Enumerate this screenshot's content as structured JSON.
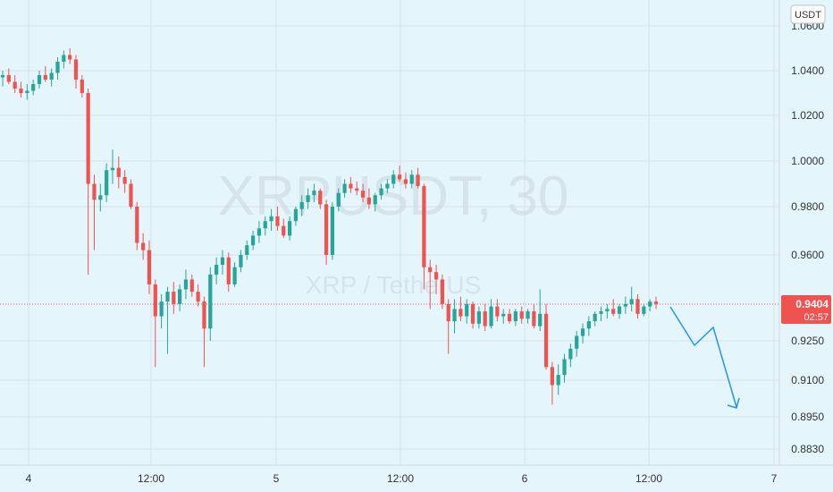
{
  "chart_data": {
    "type": "candlestick",
    "watermark": {
      "symbol": "XRPUSDT, 30",
      "name": "XRP / TetherUS"
    },
    "currency_label": "USDT",
    "y_ticks": [
      "1.0600",
      "1.0400",
      "1.0200",
      "1.0000",
      "0.9800",
      "0.9600",
      "0.9250",
      "0.9100",
      "0.8950",
      "0.8830"
    ],
    "x_ticks": [
      "4",
      "12:00",
      "5",
      "12:00",
      "6",
      "12:00",
      "7"
    ],
    "last_price": "0.9404",
    "countdown": "02:57",
    "grid": true,
    "colors": {
      "background": "#e4f5fb",
      "up": "#26a69a",
      "down": "#ef5350",
      "grid": "#d5e3e9",
      "forecast": "#2196f3"
    },
    "candles_ohlc": [
      [
        1.037,
        1.04,
        1.033,
        1.038
      ],
      [
        1.038,
        1.041,
        1.034,
        1.035
      ],
      [
        1.035,
        1.038,
        1.03,
        1.032
      ],
      [
        1.032,
        1.035,
        1.028,
        1.03
      ],
      [
        1.03,
        1.034,
        1.027,
        1.031
      ],
      [
        1.031,
        1.036,
        1.029,
        1.034
      ],
      [
        1.034,
        1.04,
        1.032,
        1.038
      ],
      [
        1.038,
        1.042,
        1.035,
        1.036
      ],
      [
        1.036,
        1.041,
        1.033,
        1.039
      ],
      [
        1.039,
        1.046,
        1.036,
        1.044
      ],
      [
        1.044,
        1.049,
        1.041,
        1.047
      ],
      [
        1.047,
        1.05,
        1.043,
        1.045
      ],
      [
        1.045,
        1.047,
        1.032,
        1.036
      ],
      [
        1.036,
        1.038,
        1.028,
        1.03
      ],
      [
        1.03,
        1.032,
        0.952,
        0.99
      ],
      [
        0.99,
        0.994,
        0.962,
        0.983
      ],
      [
        0.983,
        0.99,
        0.978,
        0.985
      ],
      [
        0.985,
        0.999,
        0.982,
        0.996
      ],
      [
        0.996,
        1.005,
        0.99,
        0.997
      ],
      [
        0.997,
        1.002,
        0.988,
        0.993
      ],
      [
        0.993,
        0.996,
        0.986,
        0.99
      ],
      [
        0.99,
        0.992,
        0.979,
        0.98
      ],
      [
        0.98,
        0.982,
        0.962,
        0.965
      ],
      [
        0.965,
        0.969,
        0.958,
        0.962
      ],
      [
        0.962,
        0.966,
        0.944,
        0.948
      ],
      [
        0.948,
        0.95,
        0.915,
        0.935
      ],
      [
        0.935,
        0.944,
        0.93,
        0.941
      ],
      [
        0.941,
        0.947,
        0.92,
        0.945
      ],
      [
        0.945,
        0.949,
        0.936,
        0.94
      ],
      [
        0.94,
        0.948,
        0.937,
        0.946
      ],
      [
        0.946,
        0.954,
        0.942,
        0.95
      ],
      [
        0.95,
        0.952,
        0.943,
        0.945
      ],
      [
        0.945,
        0.948,
        0.939,
        0.941
      ],
      [
        0.941,
        0.943,
        0.915,
        0.93
      ],
      [
        0.93,
        0.955,
        0.925,
        0.952
      ],
      [
        0.952,
        0.959,
        0.948,
        0.956
      ],
      [
        0.956,
        0.962,
        0.952,
        0.959
      ],
      [
        0.959,
        0.961,
        0.945,
        0.948
      ],
      [
        0.948,
        0.957,
        0.947,
        0.955
      ],
      [
        0.955,
        0.962,
        0.953,
        0.96
      ],
      [
        0.96,
        0.966,
        0.958,
        0.964
      ],
      [
        0.964,
        0.97,
        0.962,
        0.968
      ],
      [
        0.968,
        0.974,
        0.965,
        0.971
      ],
      [
        0.971,
        0.976,
        0.968,
        0.974
      ],
      [
        0.974,
        0.979,
        0.97,
        0.976
      ],
      [
        0.976,
        0.98,
        0.97,
        0.972
      ],
      [
        0.972,
        0.975,
        0.967,
        0.968
      ],
      [
        0.968,
        0.976,
        0.966,
        0.974
      ],
      [
        0.974,
        0.98,
        0.972,
        0.979
      ],
      [
        0.979,
        0.985,
        0.976,
        0.982
      ],
      [
        0.982,
        0.988,
        0.979,
        0.985
      ],
      [
        0.985,
        0.99,
        0.982,
        0.987
      ],
      [
        0.987,
        0.988,
        0.979,
        0.981
      ],
      [
        0.981,
        0.983,
        0.956,
        0.96
      ],
      [
        0.96,
        0.982,
        0.958,
        0.98
      ],
      [
        0.98,
        0.988,
        0.978,
        0.986
      ],
      [
        0.986,
        0.992,
        0.984,
        0.99
      ],
      [
        0.99,
        0.993,
        0.986,
        0.988
      ],
      [
        0.988,
        0.991,
        0.985,
        0.987
      ],
      [
        0.987,
        0.99,
        0.982,
        0.984
      ],
      [
        0.984,
        0.988,
        0.979,
        0.981
      ],
      [
        0.981,
        0.986,
        0.978,
        0.985
      ],
      [
        0.985,
        0.99,
        0.983,
        0.988
      ],
      [
        0.988,
        0.992,
        0.986,
        0.99
      ],
      [
        0.99,
        0.996,
        0.988,
        0.994
      ],
      [
        0.994,
        0.998,
        0.991,
        0.992
      ],
      [
        0.992,
        0.995,
        0.988,
        0.99
      ],
      [
        0.99,
        0.996,
        0.988,
        0.994
      ],
      [
        0.994,
        0.997,
        0.988,
        0.989
      ],
      [
        0.989,
        0.99,
        0.946,
        0.955
      ],
      [
        0.955,
        0.958,
        0.938,
        0.953
      ],
      [
        0.953,
        0.956,
        0.944,
        0.95
      ],
      [
        0.95,
        0.952,
        0.938,
        0.94
      ],
      [
        0.94,
        0.942,
        0.92,
        0.933
      ],
      [
        0.933,
        0.942,
        0.928,
        0.938
      ],
      [
        0.938,
        0.943,
        0.933,
        0.935
      ],
      [
        0.935,
        0.942,
        0.932,
        0.94
      ],
      [
        0.94,
        0.941,
        0.93,
        0.932
      ],
      [
        0.932,
        0.939,
        0.93,
        0.937
      ],
      [
        0.937,
        0.94,
        0.929,
        0.931
      ],
      [
        0.931,
        0.942,
        0.93,
        0.939
      ],
      [
        0.939,
        0.942,
        0.933,
        0.935
      ],
      [
        0.935,
        0.938,
        0.932,
        0.936
      ],
      [
        0.936,
        0.938,
        0.932,
        0.933
      ],
      [
        0.933,
        0.938,
        0.931,
        0.937
      ],
      [
        0.937,
        0.939,
        0.932,
        0.934
      ],
      [
        0.934,
        0.938,
        0.932,
        0.937
      ],
      [
        0.937,
        0.94,
        0.93,
        0.931
      ],
      [
        0.931,
        0.946,
        0.929,
        0.936
      ],
      [
        0.936,
        0.94,
        0.914,
        0.915
      ],
      [
        0.915,
        0.917,
        0.9,
        0.908
      ],
      [
        0.908,
        0.916,
        0.904,
        0.912
      ],
      [
        0.912,
        0.92,
        0.909,
        0.918
      ],
      [
        0.918,
        0.924,
        0.915,
        0.922
      ],
      [
        0.922,
        0.929,
        0.919,
        0.927
      ],
      [
        0.927,
        0.932,
        0.924,
        0.93
      ],
      [
        0.93,
        0.935,
        0.927,
        0.933
      ],
      [
        0.933,
        0.937,
        0.931,
        0.936
      ],
      [
        0.936,
        0.939,
        0.933,
        0.937
      ],
      [
        0.937,
        0.94,
        0.934,
        0.938
      ],
      [
        0.938,
        0.942,
        0.935,
        0.936
      ],
      [
        0.936,
        0.94,
        0.934,
        0.939
      ],
      [
        0.939,
        0.943,
        0.936,
        0.94
      ],
      [
        0.94,
        0.947,
        0.937,
        0.942
      ],
      [
        0.942,
        0.944,
        0.934,
        0.936
      ],
      [
        0.936,
        0.94,
        0.935,
        0.939
      ],
      [
        0.939,
        0.942,
        0.937,
        0.941
      ],
      [
        0.941,
        0.943,
        0.938,
        0.94
      ]
    ]
  }
}
